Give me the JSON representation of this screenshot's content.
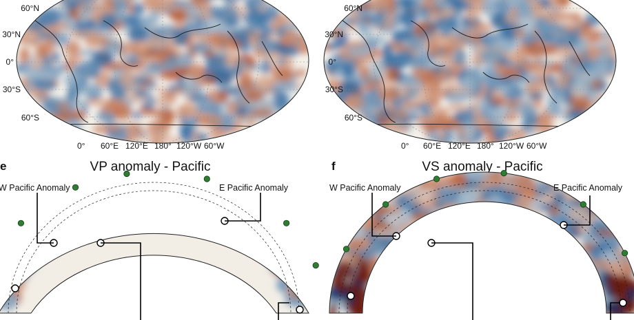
{
  "maps": [
    {
      "lat_labels": [
        "60°N",
        "30°N",
        "0°",
        "30°S",
        "60°S"
      ],
      "lon_labels": [
        "0°",
        "60°E",
        "120°E",
        "180°",
        "120°W",
        "60°W"
      ]
    },
    {
      "lat_labels": [
        "60°N",
        "30°N",
        "0°",
        "30°S",
        "60°S"
      ],
      "lon_labels": [
        "0°",
        "60°E",
        "120°E",
        "180°",
        "120°W",
        "60°W"
      ]
    }
  ],
  "sections": [
    {
      "panel_letter": "e",
      "title": "VP anomaly - Pacific",
      "left_label": "W Pacific Anomaly",
      "right_label": "E Pacific Anomaly"
    },
    {
      "panel_letter": "f",
      "title": "VS anomaly - Pacific",
      "left_label": "W Pacific Anomaly",
      "right_label": "E Pacific Anomaly"
    }
  ],
  "colors": {
    "slow": "#b5562e",
    "fast": "#1f5f9a",
    "neutral": "#f4f1ea",
    "marker_green": "#2e7d32"
  }
}
